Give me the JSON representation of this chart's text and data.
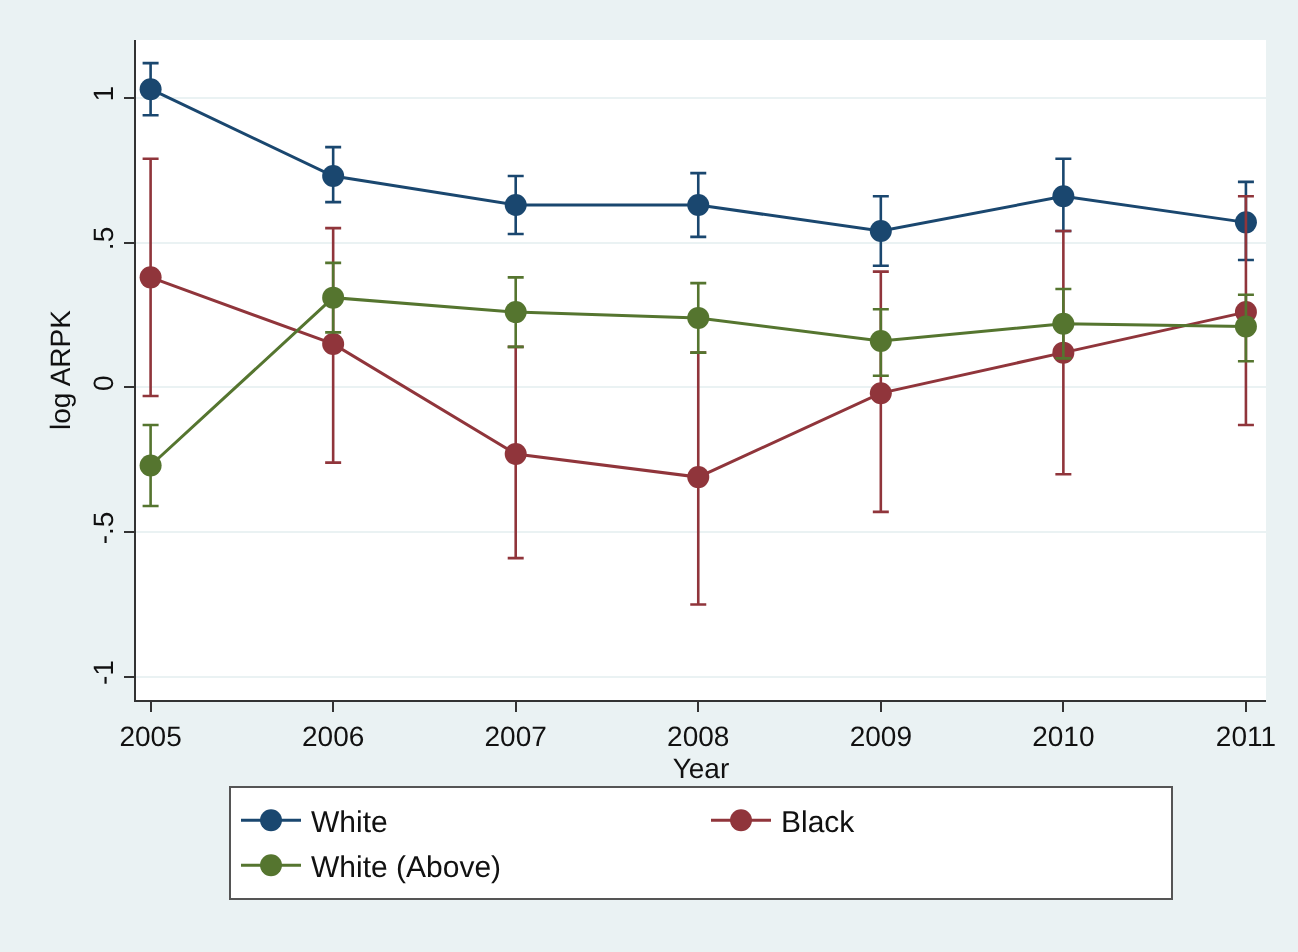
{
  "chart_data": {
    "type": "line",
    "xlabel": "Year",
    "ylabel": "log ARPK",
    "x": [
      2005,
      2006,
      2007,
      2008,
      2009,
      2010,
      2011
    ],
    "xlim": [
      2004.92,
      2011.11
    ],
    "xticks": [
      2005,
      2006,
      2007,
      2008,
      2009,
      2010,
      2011
    ],
    "ylim": [
      -1.08,
      1.2
    ],
    "yticks": [
      {
        "value": -1,
        "label": "-1"
      },
      {
        "value": -0.5,
        "label": "-.5"
      },
      {
        "value": 0,
        "label": "0"
      },
      {
        "value": 0.5,
        "label": ".5"
      },
      {
        "value": 1,
        "label": "1"
      }
    ],
    "grid": "y",
    "legend": "bottom",
    "marker": "circle",
    "line_style": "solid",
    "series": [
      {
        "name": "White",
        "color": "#1a476f",
        "values": [
          1.03,
          0.73,
          0.63,
          0.63,
          0.54,
          0.66,
          0.57
        ],
        "errors": [
          [
            0.94,
            1.12
          ],
          [
            0.64,
            0.83
          ],
          [
            0.53,
            0.73
          ],
          [
            0.52,
            0.74
          ],
          [
            0.42,
            0.66
          ],
          [
            0.54,
            0.79
          ],
          [
            0.44,
            0.71
          ]
        ]
      },
      {
        "name": "Black",
        "color": "#90353b",
        "values": [
          0.38,
          0.15,
          -0.23,
          -0.31,
          -0.02,
          0.12,
          0.26
        ],
        "errors": [
          [
            -0.03,
            0.79
          ],
          [
            -0.26,
            0.55
          ],
          [
            -0.59,
            0.14
          ],
          [
            -0.75,
            0.12
          ],
          [
            -0.43,
            0.4
          ],
          [
            -0.3,
            0.54
          ],
          [
            -0.13,
            0.66
          ]
        ]
      },
      {
        "name": "White (Above)",
        "color": "#55752f",
        "values": [
          -0.27,
          0.31,
          0.26,
          0.24,
          0.16,
          0.22,
          0.21
        ],
        "errors": [
          [
            -0.41,
            -0.13
          ],
          [
            0.19,
            0.43
          ],
          [
            0.14,
            0.38
          ],
          [
            0.12,
            0.36
          ],
          [
            0.04,
            0.27
          ],
          [
            0.1,
            0.34
          ],
          [
            0.09,
            0.32
          ]
        ]
      }
    ]
  }
}
